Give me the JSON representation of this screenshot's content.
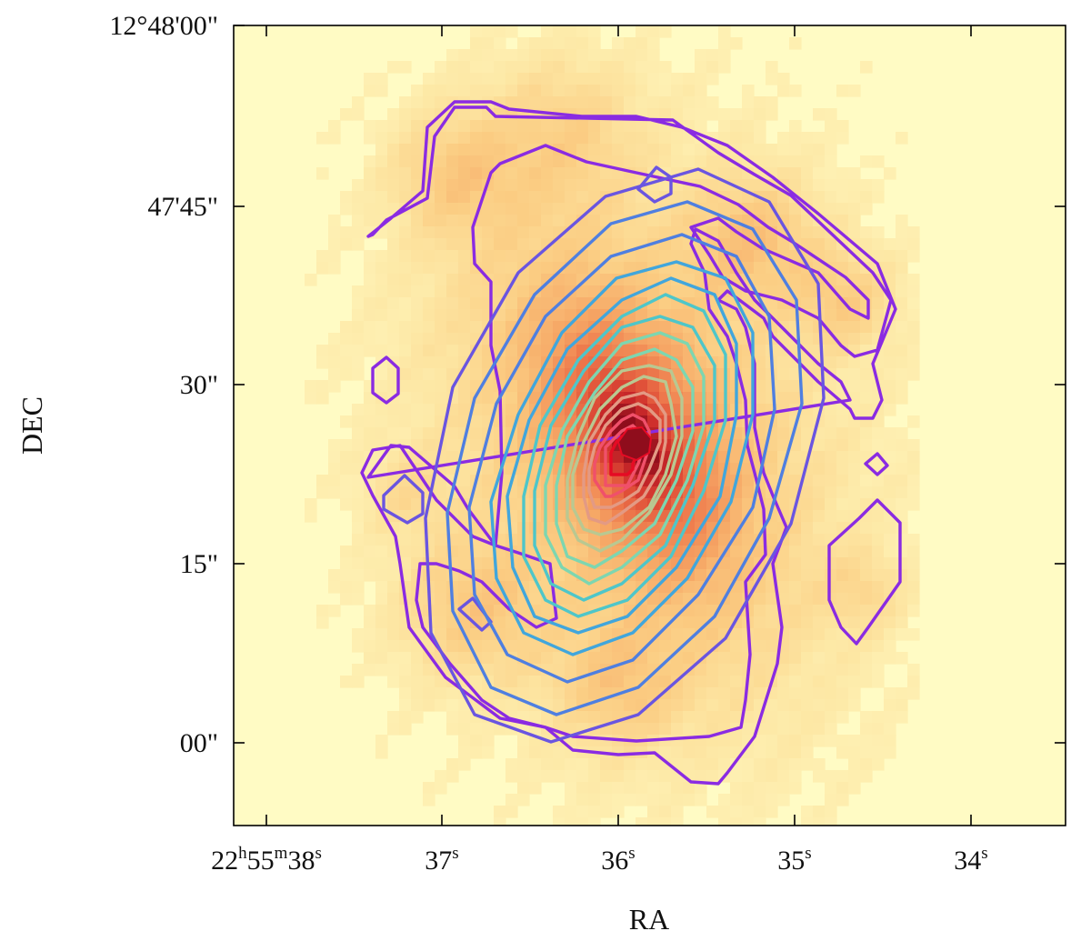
{
  "figure": {
    "x_axis_label": "RA",
    "y_axis_label": "DEC",
    "x_ticks": [
      {
        "main": "22",
        "parts": [
          [
            "h",
            "55"
          ],
          [
            "m",
            "38"
          ],
          [
            "s",
            ""
          ]
        ]
      },
      {
        "main": "37",
        "parts": [
          [
            "s",
            ""
          ]
        ]
      },
      {
        "main": "36",
        "parts": [
          [
            "s",
            ""
          ]
        ]
      },
      {
        "main": "35",
        "parts": [
          [
            "s",
            ""
          ]
        ]
      },
      {
        "main": "34",
        "parts": [
          [
            "s",
            ""
          ]
        ]
      }
    ],
    "y_ticks": [
      "12°48'00\"",
      "47'45\"",
      "30\"",
      "15\"",
      "00\""
    ],
    "colormap": [
      "#fffbc4",
      "#fde7a4",
      "#fbcd83",
      "#f6a866",
      "#ef7f4f",
      "#e1533a",
      "#cc2a2a",
      "#8f0d1c"
    ],
    "contour_colors": [
      "#8a2be2",
      "#6a55e0",
      "#4f7fe0",
      "#41a6dc",
      "#4ec6c9",
      "#7dd6b0",
      "#b9c891",
      "#e39a84",
      "#f0506a",
      "#e60b24"
    ]
  }
}
